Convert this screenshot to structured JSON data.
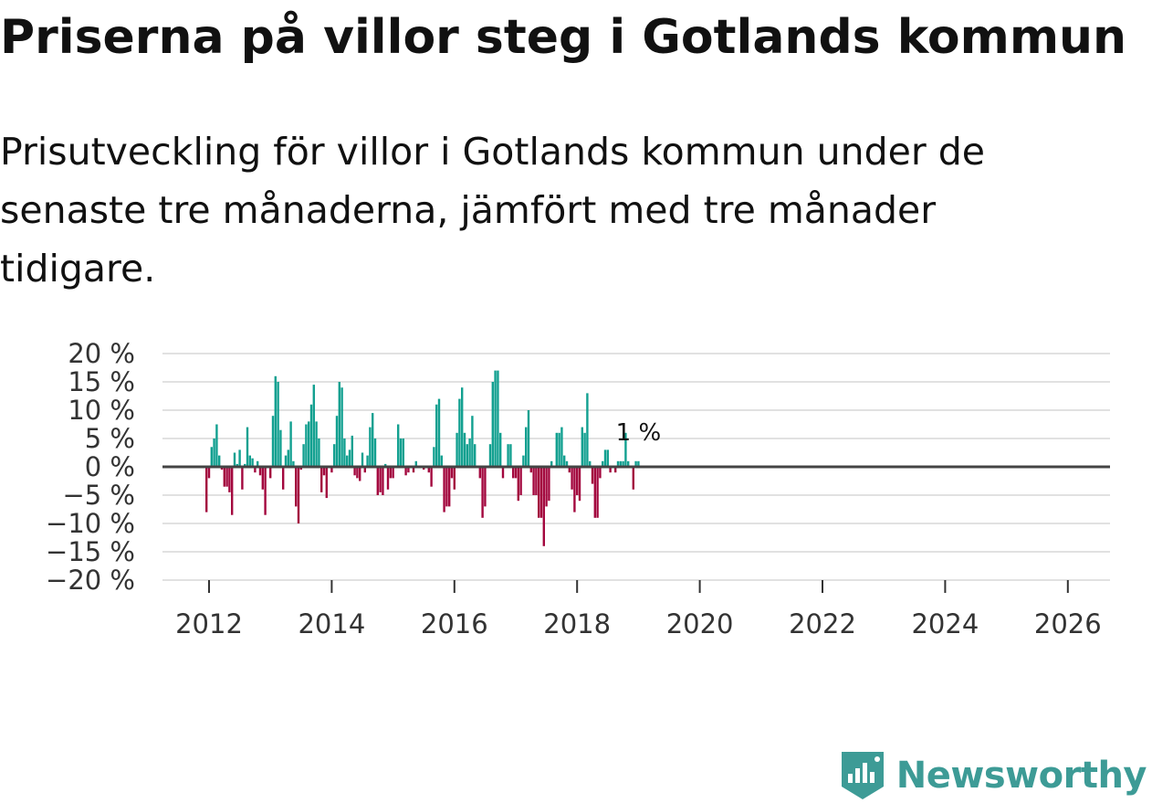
{
  "title": "Priserna på villor steg i Gotlands kommun",
  "subtitle": "Prisutveckling för villor i Gotlands kommun under de senaste tre månaderna, jämfört med tre månader tidigare.",
  "logo": {
    "text": "Newsworthy"
  },
  "colors": {
    "positive": "#12a090",
    "negative": "#a3073e",
    "grid": "#e1e1e1",
    "zero": "#444444",
    "logo": "#3d9b96"
  },
  "chart_data": {
    "type": "bar",
    "start": [
      2011,
      12
    ],
    "xticks": [
      "2012",
      "2014",
      "2016",
      "2018",
      "2020",
      "2022",
      "2024",
      "2026"
    ],
    "yticks": [
      "20 %",
      "15 %",
      "10 %",
      "5 %",
      "0 %",
      "−5 %",
      "−10 %",
      "−15 %",
      "−20 %"
    ],
    "ylim": [
      -20,
      20
    ],
    "unit": "%",
    "last_label": "1 %",
    "values": [
      -8,
      -2,
      3.5,
      5,
      7.5,
      2,
      -0.5,
      -3.5,
      -3.5,
      -4.5,
      -8.5,
      2.5,
      0.5,
      3,
      -4,
      0.5,
      7,
      2,
      1.5,
      -1,
      1,
      -1.5,
      -4,
      -8.5,
      0,
      -2,
      9,
      16,
      15,
      6.5,
      -4,
      2,
      3,
      8,
      1,
      -7,
      -10,
      -0.5,
      4,
      7.5,
      8,
      11,
      14.5,
      8,
      5,
      -4.5,
      -1.5,
      -5.5,
      0,
      -1,
      4,
      9,
      15,
      14,
      5,
      2,
      3,
      5.5,
      -1.5,
      -2,
      -2.5,
      2.5,
      -1,
      2,
      7,
      9.5,
      5,
      -5,
      -4.5,
      -5,
      0.5,
      -4,
      -2,
      -2,
      0,
      7.5,
      5,
      5,
      -1.5,
      -1,
      0,
      -1,
      1,
      0,
      0,
      -0.5,
      0,
      -1,
      -3.5,
      3.5,
      11,
      12,
      2,
      -8,
      -7,
      -7,
      -2,
      -4,
      6,
      12,
      14,
      6,
      4,
      5,
      9,
      4,
      0,
      -2,
      -9,
      -7,
      0,
      4,
      15,
      17,
      17,
      6,
      -2,
      0,
      4,
      4,
      -2,
      -2,
      -6,
      -5,
      2,
      7,
      10,
      -1,
      -5,
      -5,
      -9,
      -9,
      -14,
      -7,
      -6,
      1,
      0,
      6,
      6,
      7,
      2,
      1,
      -1,
      -4,
      -8,
      -5,
      -6,
      7,
      6,
      13,
      1,
      -3,
      -9,
      -9,
      -2,
      1,
      3,
      3,
      -1,
      0,
      -1,
      1,
      1,
      1,
      6,
      1,
      0,
      -4,
      1,
      1
    ]
  }
}
